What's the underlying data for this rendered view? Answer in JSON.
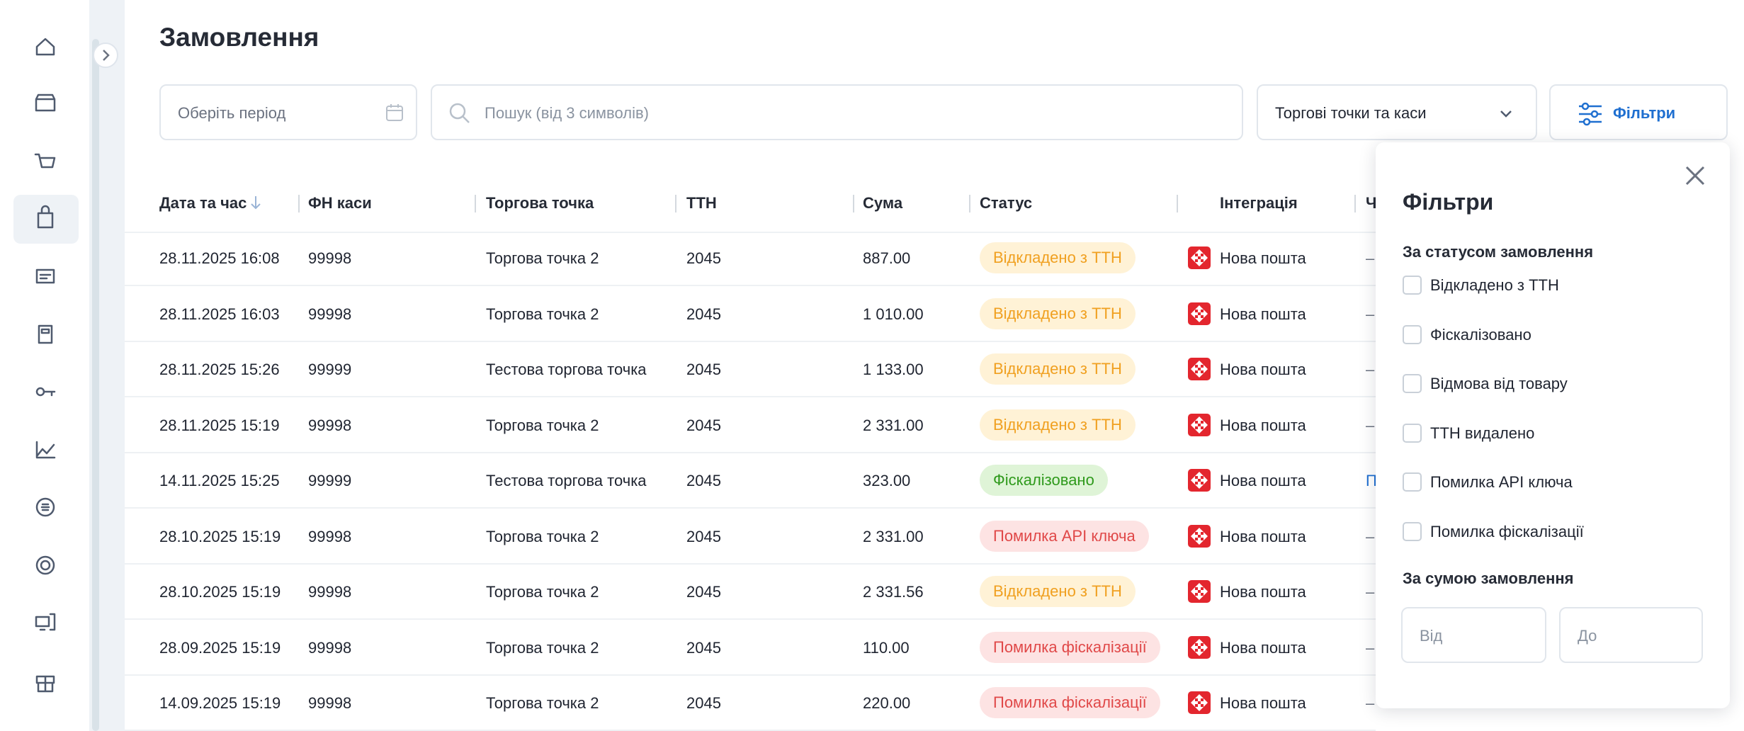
{
  "page": {
    "title": "Замовлення"
  },
  "toolbar": {
    "period": "Оберіть період",
    "search": "Пошук (від 3 символів)",
    "points": "Торгові точки та каси",
    "filters": "Фільтри"
  },
  "table": {
    "headers": [
      "Дата та час",
      "ФН каси",
      "Торгова точка",
      "ТТН",
      "Сума",
      "Статус",
      "Інтеграція",
      "Ч"
    ],
    "rows": [
      {
        "date": "28.11.2025 16:08",
        "fn": "99998",
        "point": "Торгова точка 2",
        "ttn": "2045",
        "sum": "887.00",
        "status": "Відкладено з ТТН",
        "status_color": "#f0a020",
        "status_bg": "#fff2d6",
        "integration": "Нова пошта",
        "last": "–"
      },
      {
        "date": "28.11.2025 16:03",
        "fn": "99998",
        "point": "Торгова точка 2",
        "ttn": "2045",
        "sum": "1 010.00",
        "status": "Відкладено з ТТН",
        "status_color": "#f0a020",
        "status_bg": "#fff2d6",
        "integration": "Нова пошта",
        "last": "–"
      },
      {
        "date": "28.11.2025 15:26",
        "fn": "99999",
        "point": "Тестова торгова точка",
        "ttn": "2045",
        "sum": "1 133.00",
        "status": "Відкладено з ТТН",
        "status_color": "#f0a020",
        "status_bg": "#fff2d6",
        "integration": "Нова пошта",
        "last": "–"
      },
      {
        "date": "28.11.2025 15:19",
        "fn": "99998",
        "point": "Торгова точка 2",
        "ttn": "2045",
        "sum": "2 331.00",
        "status": "Відкладено з ТТН",
        "status_color": "#f0a020",
        "status_bg": "#fff2d6",
        "integration": "Нова пошта",
        "last": "–"
      },
      {
        "date": "14.11.2025 15:25",
        "fn": "99999",
        "point": "Тестова торгова точка",
        "ttn": "2045",
        "sum": "323.00",
        "status": "Фіскалізовано",
        "status_color": "#2f9a1c",
        "status_bg": "#dff4d7",
        "integration": "Нова пошта",
        "last": "П"
      },
      {
        "date": "28.10.2025 15:19",
        "fn": "99998",
        "point": "Торгова точка 2",
        "ttn": "2045",
        "sum": "2 331.00",
        "status": "Помилка API ключа",
        "status_color": "#e04848",
        "status_bg": "#fde3e3",
        "integration": "Нова пошта",
        "last": "–"
      },
      {
        "date": "28.10.2025 15:19",
        "fn": "99998",
        "point": "Торгова точка 2",
        "ttn": "2045",
        "sum": "2 331.56",
        "status": "Відкладено з ТТН",
        "status_color": "#f0a020",
        "status_bg": "#fff2d6",
        "integration": "Нова пошта",
        "last": "–"
      },
      {
        "date": "28.09.2025 15:19",
        "fn": "99998",
        "point": "Торгова точка 2",
        "ttn": "2045",
        "sum": "110.00",
        "status": "Помилка фіскалізації",
        "status_color": "#e04848",
        "status_bg": "#fde3e3",
        "integration": "Нова пошта",
        "last": "–"
      },
      {
        "date": "14.09.2025 15:19",
        "fn": "99998",
        "point": "Торгова точка 2",
        "ttn": "2045",
        "sum": "220.00",
        "status": "Помилка фіскалізації",
        "status_color": "#e04848",
        "status_bg": "#fde3e3",
        "integration": "Нова пошта",
        "last": "–"
      }
    ]
  },
  "filters": {
    "title": "Фільтри",
    "status_heading": "За статусом замовлення",
    "statuses": [
      "Відкладено з ТТН",
      "Фіскалізовано",
      "Відмова від товару",
      "ТТН видалено",
      "Помилка API ключа",
      "Помилка фіскалізації"
    ],
    "sum_heading": "За сумою замовлення",
    "from": "Від",
    "to": "До"
  }
}
